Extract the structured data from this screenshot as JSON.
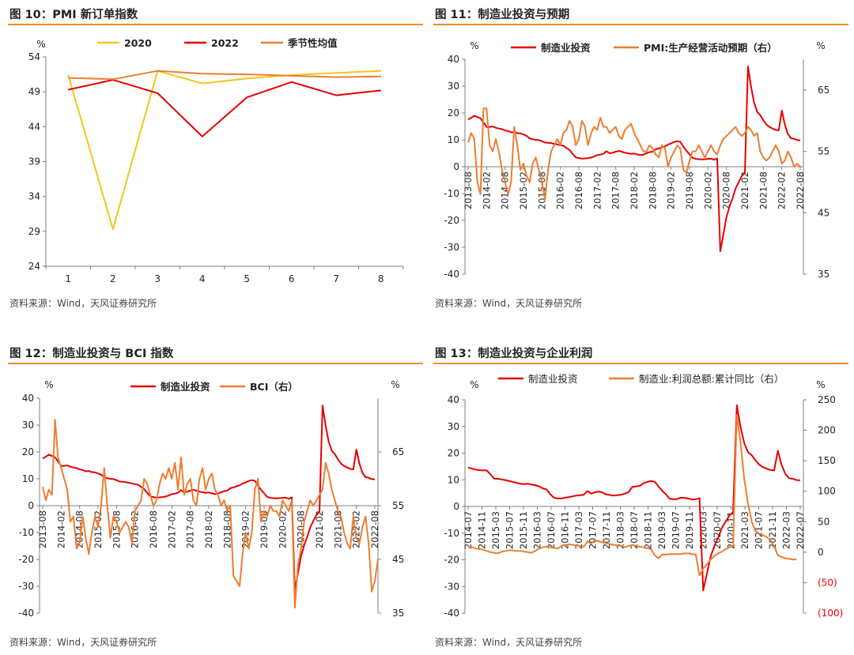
{
  "colors": {
    "accent": "#F28C28",
    "red": "#E60000",
    "orange": "#ED7D31",
    "yellow": "#F5C518",
    "axis": "#7F7F7F"
  },
  "source_text": "资料来源：Wind，天风证券研究所",
  "charts": [
    {
      "type": "line",
      "title": "图 10：PMI 新订单指数",
      "ylabel": "%",
      "ylim": [
        24,
        54
      ],
      "yticks": [
        24,
        29,
        34,
        39,
        44,
        49,
        54
      ],
      "categories": [
        "1",
        "2",
        "3",
        "4",
        "5",
        "6",
        "7",
        "8"
      ],
      "series": [
        {
          "name": "2020",
          "color": "#F5C518",
          "values": [
            51.4,
            29.3,
            52.0,
            50.2,
            50.9,
            51.4,
            51.7,
            52.0
          ]
        },
        {
          "name": "2022",
          "color": "#E60000",
          "values": [
            49.3,
            50.7,
            48.8,
            42.6,
            48.2,
            50.4,
            48.5,
            49.2
          ]
        },
        {
          "name": "季节性均值",
          "color": "#ED7D31",
          "values": [
            51.0,
            50.8,
            52.0,
            51.6,
            51.5,
            51.3,
            51.1,
            51.2
          ]
        }
      ]
    },
    {
      "type": "line",
      "title": "图 11：制造业投资与预期",
      "ylabel": "%",
      "ylabel_right": "%",
      "ylim": [
        -40,
        40
      ],
      "yticks": [
        -40,
        -30,
        -20,
        -10,
        0,
        10,
        20,
        30,
        40
      ],
      "ylim_right": [
        35,
        70
      ],
      "yticks_right": [
        35,
        45,
        55,
        65
      ],
      "x_labels": [
        "2013-08",
        "2014-02",
        "2014-08",
        "2015-02",
        "2015-08",
        "2016-02",
        "2016-08",
        "2017-02",
        "2017-08",
        "2018-02",
        "2018-08",
        "2019-02",
        "2019-08",
        "2020-02",
        "2020-08",
        "2021-02",
        "2021-08",
        "2022-02",
        "2022-08"
      ],
      "series": [
        {
          "name": "制造业投资",
          "color": "#E60000",
          "axis": "left",
          "values": [
            17.6,
            18.2,
            19.0,
            18.5,
            18.0,
            16.5,
            14.8,
            14.8,
            15.0,
            14.5,
            14.2,
            14.0,
            13.5,
            13.3,
            12.8,
            12.9,
            12.5,
            12.4,
            12.0,
            11.5,
            10.6,
            10.2,
            10.0,
            9.9,
            9.5,
            9.0,
            8.9,
            8.8,
            8.5,
            8.3,
            8.0,
            7.8,
            7.0,
            6.2,
            4.8,
            3.5,
            3.2,
            3.0,
            3.1,
            3.2,
            3.4,
            3.8,
            4.3,
            4.5,
            4.8,
            5.8,
            5.0,
            5.2,
            5.6,
            5.9,
            5.6,
            5.2,
            5.0,
            4.8,
            4.9,
            4.6,
            4.3,
            4.5,
            5.0,
            5.4,
            5.6,
            6.5,
            6.8,
            7.2,
            7.6,
            8.2,
            8.7,
            9.2,
            9.5,
            9.3,
            7.5,
            5.9,
            4.6,
            3.3,
            2.9,
            2.8,
            2.7,
            2.8,
            2.9,
            3.0,
            2.6,
            3.1,
            -31.5,
            -25.2,
            -18.8,
            -14.8,
            -11.7,
            -8.1,
            -5.7,
            -3.5,
            -2.2,
            37.3,
            29.8,
            23.8,
            20.4,
            19.2,
            17.3,
            15.7,
            14.8,
            14.2,
            13.7,
            13.5,
            20.9,
            15.6,
            12.2,
            10.6,
            10.4,
            9.9,
            9.8
          ]
        },
        {
          "name": "PMI:生产经营活动预期（右）",
          "color": "#ED7D31",
          "axis": "right",
          "values": [
            56.5,
            58.0,
            57.0,
            50.0,
            48.0,
            62.0,
            62.0,
            56.0,
            55.0,
            57.0,
            55.0,
            52.0,
            50.0,
            48.0,
            50.0,
            59.0,
            56.0,
            52.0,
            53.0,
            51.0,
            50.0,
            53.0,
            54.0,
            52.0,
            50.0,
            47.0,
            52.0,
            55.0,
            56.0,
            57.0,
            56.0,
            58.0,
            58.5,
            60.0,
            59.0,
            56.0,
            57.0,
            60.0,
            59.0,
            56.0,
            58.0,
            59.0,
            58.5,
            60.5,
            59.0,
            59.0,
            58.0,
            58.5,
            59.0,
            57.5,
            57.0,
            58.5,
            59.0,
            59.5,
            58.0,
            57.0,
            56.0,
            55.0,
            55.0,
            56.0,
            55.5,
            54.5,
            54.0,
            56.0,
            55.5,
            52.5,
            54.0,
            55.0,
            56.0,
            55.5,
            52.0,
            51.5,
            53.5,
            55.0,
            55.0,
            56.0,
            55.0,
            54.0,
            55.0,
            56.0,
            55.0,
            54.5,
            56.0,
            57.0,
            57.5,
            58.0,
            58.5,
            59.0,
            58.0,
            57.5,
            58.0,
            59.0,
            58.5,
            57.5,
            58.0,
            55.0,
            54.0,
            53.5,
            54.0,
            55.0,
            56.0,
            55.0,
            53.0,
            53.5,
            55.0,
            54.0,
            52.5,
            53.0,
            52.5
          ]
        }
      ]
    },
    {
      "type": "line",
      "title": "图 12：制造业投资与 BCI 指数",
      "ylabel": "%",
      "ylabel_right": "%",
      "ylim": [
        -40,
        40
      ],
      "yticks": [
        -40,
        -30,
        -20,
        -10,
        0,
        10,
        20,
        30,
        40
      ],
      "ylim_right": [
        35,
        75
      ],
      "yticks_right": [
        35,
        45,
        55,
        65
      ],
      "x_labels": [
        "2013-08",
        "2014-02",
        "2014-08",
        "2015-02",
        "2015-08",
        "2016-02",
        "2016-08",
        "2017-02",
        "2017-08",
        "2018-02",
        "2018-08",
        "2019-02",
        "2019-08",
        "2020-02",
        "2020-08",
        "2021-02",
        "2021-08",
        "2022-02",
        "2022-08"
      ],
      "series": [
        {
          "name": "制造业投资",
          "color": "#E60000",
          "axis": "left",
          "values": [
            17.6,
            18.2,
            19.0,
            18.5,
            18.0,
            16.5,
            14.8,
            14.8,
            15.0,
            14.5,
            14.2,
            14.0,
            13.5,
            13.3,
            12.8,
            12.9,
            12.5,
            12.4,
            12.0,
            11.5,
            10.6,
            10.2,
            10.0,
            9.9,
            9.5,
            9.0,
            8.9,
            8.8,
            8.5,
            8.3,
            8.0,
            7.8,
            7.0,
            6.2,
            4.8,
            3.5,
            3.2,
            3.0,
            3.1,
            3.2,
            3.4,
            3.8,
            4.3,
            4.5,
            4.8,
            5.8,
            5.0,
            5.2,
            5.6,
            5.9,
            5.6,
            5.2,
            5.0,
            4.8,
            4.9,
            4.6,
            4.3,
            4.5,
            5.0,
            5.4,
            5.6,
            6.5,
            6.8,
            7.2,
            7.6,
            8.2,
            8.7,
            9.2,
            9.5,
            9.3,
            7.5,
            5.9,
            4.6,
            3.3,
            2.9,
            2.8,
            2.7,
            2.8,
            2.9,
            3.0,
            2.6,
            3.1,
            -31.5,
            -25.2,
            -18.8,
            -14.8,
            -11.7,
            -8.1,
            -5.7,
            -3.5,
            -2.2,
            37.3,
            29.8,
            23.8,
            20.4,
            19.2,
            17.3,
            15.7,
            14.8,
            14.2,
            13.7,
            13.5,
            20.9,
            15.6,
            12.2,
            10.6,
            10.4,
            9.9,
            9.8
          ]
        },
        {
          "name": "BCI（右）",
          "color": "#ED7D31",
          "axis": "right",
          "values": [
            58.5,
            56.0,
            58.0,
            57.0,
            71.0,
            64.0,
            62.0,
            60.0,
            58.0,
            52.0,
            53.0,
            47.0,
            48.0,
            53.0,
            49.0,
            46.0,
            50.0,
            53.0,
            51.0,
            55.0,
            62.0,
            55.0,
            49.0,
            53.0,
            52.0,
            50.0,
            51.0,
            52.0,
            51.0,
            48.0,
            54.0,
            55.0,
            56.0,
            60.0,
            59.0,
            57.0,
            55.0,
            56.0,
            59.0,
            61.0,
            60.0,
            62.0,
            60.0,
            63.0,
            58.0,
            64.0,
            57.0,
            59.0,
            60.0,
            56.0,
            55.0,
            60.0,
            62.0,
            58.0,
            60.0,
            61.0,
            58.0,
            57.0,
            55.0,
            56.0,
            54.0,
            55.0,
            42.0,
            41.0,
            40.0,
            46.0,
            50.0,
            47.0,
            50.0,
            58.0,
            60.0,
            52.0,
            54.0,
            53.0,
            55.0,
            54.0,
            54.0,
            53.0,
            56.0,
            55.0,
            54.0,
            56.0,
            36.0,
            44.0,
            47.0,
            52.0,
            54.0,
            56.0,
            55.0,
            56.0,
            57.0,
            58.0,
            63.0,
            61.0,
            58.0,
            56.0,
            54.0,
            53.0,
            50.0,
            48.0,
            47.0,
            53.0,
            49.0,
            48.0,
            51.0,
            53.0,
            48.0,
            39.0,
            41.0,
            45.0
          ]
        }
      ]
    },
    {
      "type": "line",
      "title": "图 13：制造业投资与企业利润",
      "ylabel": "%",
      "ylabel_right": "%",
      "ylim": [
        -40,
        40
      ],
      "yticks": [
        -40,
        -30,
        -20,
        -10,
        0,
        10,
        20,
        30,
        40
      ],
      "ylim_right": [
        -100,
        250
      ],
      "yticks_right": [
        -100,
        -50,
        0,
        50,
        100,
        150,
        200,
        250
      ],
      "yticks_right_labels": [
        "(100)",
        "(50)",
        "0",
        "50",
        "100",
        "150",
        "200",
        "250"
      ],
      "x_labels": [
        "2014-07",
        "2014-11",
        "2015-03",
        "2015-07",
        "2015-11",
        "2016-03",
        "2016-07",
        "2016-11",
        "2017-03",
        "2017-07",
        "2017-11",
        "2018-03",
        "2018-07",
        "2018-11",
        "2019-03",
        "2019-07",
        "2019-11",
        "2020-03",
        "2020-07",
        "2020-11",
        "2021-03",
        "2021-07",
        "2021-11",
        "2022-03",
        "2022-07"
      ],
      "series": [
        {
          "name": "制造业投资",
          "color": "#E60000",
          "axis": "left",
          "values": [
            14.6,
            14.2,
            13.8,
            13.6,
            13.5,
            13.5,
            12.0,
            10.4,
            10.4,
            10.1,
            9.9,
            9.5,
            9.2,
            8.9,
            8.5,
            8.4,
            8.5,
            8.2,
            8.0,
            7.5,
            6.8,
            6.4,
            4.6,
            3.3,
            3.0,
            3.0,
            3.3,
            3.5,
            3.8,
            4.1,
            4.2,
            4.4,
            5.8,
            4.8,
            5.3,
            5.6,
            5.2,
            4.5,
            4.3,
            4.1,
            4.2,
            4.4,
            4.8,
            5.4,
            7.3,
            7.5,
            7.7,
            8.7,
            9.2,
            9.5,
            9.3,
            7.5,
            5.9,
            4.6,
            2.9,
            2.7,
            2.8,
            3.3,
            3.2,
            3.0,
            2.6,
            2.7,
            3.1,
            -31.5,
            -25.2,
            -18.8,
            -14.8,
            -11.7,
            -8.1,
            -5.7,
            -3.5,
            -2.2,
            38.0,
            29.8,
            23.8,
            20.4,
            19.2,
            17.3,
            15.7,
            14.8,
            14.2,
            13.7,
            13.5,
            20.9,
            15.6,
            12.2,
            10.6,
            10.4,
            9.9,
            9.8
          ]
        },
        {
          "name": "制造业:利润总额:累计同比（右）",
          "color": "#ED7D31",
          "axis": "right",
          "values": [
            9.0,
            8.0,
            6.0,
            5.0,
            4.0,
            2.0,
            0.0,
            -1.0,
            -2.0,
            1.0,
            2.0,
            3.0,
            3.0,
            2.0,
            2.0,
            1.0,
            0.0,
            -1.0,
            2.0,
            6.0,
            8.0,
            9.0,
            8.0,
            7.0,
            6.0,
            10.0,
            12.0,
            13.0,
            12.0,
            11.0,
            10.0,
            9.0,
            18.0,
            14.0,
            20.0,
            18.0,
            16.0,
            15.0,
            13.0,
            12.0,
            11.0,
            10.0,
            8.0,
            10.0,
            12.0,
            10.0,
            9.0,
            8.0,
            7.0,
            5.0,
            -5.0,
            -10.0,
            -4.0,
            -4.0,
            -3.0,
            -3.0,
            -3.0,
            -3.0,
            -2.0,
            -2.0,
            -3.0,
            -4.0,
            -38.0,
            -27.0,
            -20.0,
            -12.0,
            -6.0,
            -2.0,
            1.0,
            5.0,
            8.0,
            10.0,
            225.0,
            180.0,
            120.0,
            80.0,
            50.0,
            35.0,
            30.0,
            28.0,
            25.0,
            20.0,
            10.0,
            -5.0,
            -8.0,
            -10.0,
            -11.0,
            -12.0,
            -12.0
          ]
        }
      ]
    }
  ]
}
